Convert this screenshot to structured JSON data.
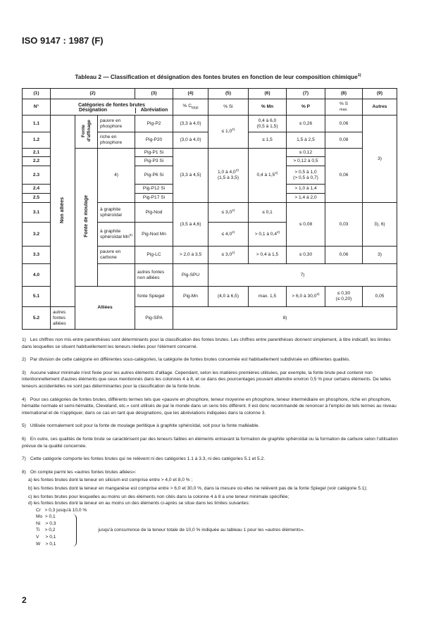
{
  "header": {
    "doc_ref": "ISO 9147 : 1987 (F)"
  },
  "table": {
    "title": "Tableau 2 — Classification et désignation des fontes brutes en fonction de leur composition chimique",
    "title_note": "1)",
    "col_numbers": [
      "(1)",
      "(2)",
      "(3)",
      "(4)",
      "(5)",
      "(6)",
      "(7)",
      "(8)",
      "(9)"
    ],
    "headers": {
      "no": "N°",
      "categories": "Catégories de fontes brutes",
      "designation": "Désignation",
      "abbreviation": "Abréviation",
      "c": "% C",
      "c_sub": "total",
      "si": "% Si",
      "mn": "% Mn",
      "p": "% P",
      "s": "% S",
      "s_sub": "max.",
      "others": "Autres"
    },
    "groups": {
      "non_alliees": "Non alliées",
      "alliees": "Alliées",
      "affinage": "Fonte d'affinage",
      "moulage": "Fonte de moulage",
      "note4": "4)"
    },
    "rows": {
      "r11": {
        "no": "1.1",
        "desig": "pauvre en phosphore",
        "abbr": "Pig-P2",
        "c": "(3,3 à 4,0)",
        "mn": "0,4 à 6,0",
        "mn2": "(0,5 à 1,5)",
        "p": "≤ 0,26",
        "s": "0,06"
      },
      "r12": {
        "no": "1.2",
        "desig": "riche en phosphore",
        "abbr": "Pig-P20",
        "c": "(3,0 à 4,0)",
        "mn": "≤ 1,5",
        "p": "1,5 à 2,5",
        "s": "0,08"
      },
      "si_1x": {
        "val": "≤ 1,0",
        "note": "2)"
      },
      "others_1_2": "3)",
      "r21": {
        "no": "2.1",
        "abbr": "Pig-P1 Si",
        "p": "≤ 0,12"
      },
      "r22": {
        "no": "2.2",
        "abbr": "Pig-P3 Si",
        "p": "> 0,12 à 0,5"
      },
      "r23": {
        "no": "2.3",
        "abbr": "Pig-P6 Si",
        "p": "> 0,5 à 1,0",
        "p2": "(> 0,5 à 0,7)"
      },
      "r24": {
        "no": "2.4",
        "abbr": "Pig-P12 Si",
        "p": "> 1,0 à 1,4"
      },
      "r25": {
        "no": "2.5",
        "abbr": "Pig-P17 Si",
        "p": "> 1,4 à 2,0"
      },
      "g2": {
        "c": "(3,3 à 4,5)",
        "si": "1,0 à 4,0",
        "si_note": "2)",
        "si2": "(1,5 à 3,5)",
        "mn": "0,4 à 1,5",
        "mn_note": "2)",
        "s": "0,06"
      },
      "r31": {
        "no": "3.1",
        "desig": "à graphite sphéroïdal",
        "abbr": "Pig-Nod",
        "si": "≤ 3,0",
        "si_note": "2)",
        "mn": "≤ 0,1"
      },
      "r32": {
        "no": "3.2",
        "desig": "à graphite sphéroïdal Mn",
        "desig_note": "5)",
        "abbr": "Pig-Nod Mn",
        "si": "≤ 4,0",
        "si_note": "2)",
        "mn": "> 0,1 à 0,4",
        "mn_note": "2)"
      },
      "g3": {
        "c": "(3,5 à 4,6)",
        "p": "≤ 0,08",
        "s": "0,03",
        "others": "3), 6)"
      },
      "r33": {
        "no": "3.3",
        "desig": "pauvre en carbone",
        "abbr": "Pig-LC",
        "c": "> 2,0 à 3,5",
        "si": "≤ 3,0",
        "si_note": "2)",
        "mn": "> 0,4 à 1,5",
        "p": "≤ 0,30",
        "s": "0,06",
        "others": "3)"
      },
      "r40": {
        "no": "4.0",
        "desig": "autres fontes non alliées",
        "abbr": "Pig-SPU",
        "note": "7)"
      },
      "r51": {
        "no": "5.1",
        "desig": "fonte Spiegel",
        "abbr": "Pig-Mn",
        "c": "(4,0 à 6,5)",
        "si": "max. 1,5",
        "mn": "> 6,0 à 30,0",
        "mn_note": "2)",
        "p": "≤ 0,30",
        "p2": "(≤ 0,20)",
        "s": "0,05",
        "others": "3)"
      },
      "r52": {
        "no": "5.2",
        "desig": "autres fontes alliées",
        "abbr": "Pig-SPA",
        "note": "8)"
      }
    }
  },
  "notes": [
    {
      "n": "1)",
      "text": "Les chiffres non mis entre parenthèses sont déterminants pour la classification des fontes brutes. Les chiffres entre parenthèses donnent simplement, à titre indicatif, les limites dans lesquelles se situent habituellement les teneurs réelles pour l'élément concerné."
    },
    {
      "n": "2)",
      "text": "Par division de cette catégorie en différentes sous-catégories, la catégorie de fontes brutes concernée est habituellement subdivisée en différentes qualités."
    },
    {
      "n": "3)",
      "text": "Aucune valeur minimale n'est fixée pour les autres éléments d'alliage. Cependant, selon les matières premières utilisées, par exemple, la fonte brute peut contenir non intentionnellement d'autres éléments que ceux mentionnés dans les colonnes 4 à 8, et ce dans des pourcentages pouvant atteindre environ 0,5 % pour certains éléments. De telles teneurs accidentelles ne sont pas déterminantes pour la classification de la fonte brute."
    },
    {
      "n": "4)",
      "text": "Pour ces catégories de fontes brutes, différents termes tels que «pauvre en phosphore, teneur moyenne en phosphore, teneur intermédiaire en phosphore, riche en phosphore, hématite normale et semi-hématite, Cleveland, etc.» sont utilisés de par le monde dans un sens très différent. Il est donc recommandé de renoncer à l'emploi de tels termes au niveau international et de n'appliquer, dans ce cas en tant que désignations, que les abréviations indiquées dans la colonne 3."
    },
    {
      "n": "5)",
      "text": "Utilisée normalement soit pour la fonte de moulage perlitique à graphite sphéroïdal, soit pour la fonte malléable."
    },
    {
      "n": "6)",
      "text": "En outre, ces qualités de fonte brute se caractérisent par des teneurs faibles en éléments entravant la formation de graphite sphéroïdal ou la formation de carbure selon l'utilisation prévue de la qualité concernée."
    },
    {
      "n": "7)",
      "text": "Cette catégorie comporte les fontes brutes qui ne relèvent ni des catégories 1.1 à 3.3, ni des catégories 5.1 et 5.2."
    },
    {
      "n": "8)",
      "text": "On compte parmi les «autres fontes brutes alliées»:"
    }
  ],
  "note8": {
    "items": [
      "a)  les fontes brutes dont la teneur en silicium est comprise entre > 4,0 et 8,0 % ;",
      "b)  les fontes brutes dont la teneur en manganèse est comprise entre > 6,0 et 30,0 %, dans la mesure où elles ne relèvent pas de la fonte Spiegel (voir catégorie 5.1);",
      "c)  les fontes brutes pour lesquelles au moins un des éléments non cités dans la colonne 4 à 8 a une teneur minimale spécifiée;",
      "d)  les fontes brutes dont la teneur en au moins un des éléments ci-après se situe dans les limites suivantes:"
    ],
    "cr": "Cr   > 0,3 jusqu'à 10,0 %",
    "elements": [
      "Mo  > 0,1",
      "Ni    > 0,3",
      "Ti    > 0,2",
      "V     > 0,1",
      "W    > 0,1"
    ],
    "brace_text": "jusqu'à concurrence de la teneur totale de 10,0 % indiquée au tableau 1 pour les «autres éléments»."
  },
  "footer": {
    "page_number": "2"
  }
}
